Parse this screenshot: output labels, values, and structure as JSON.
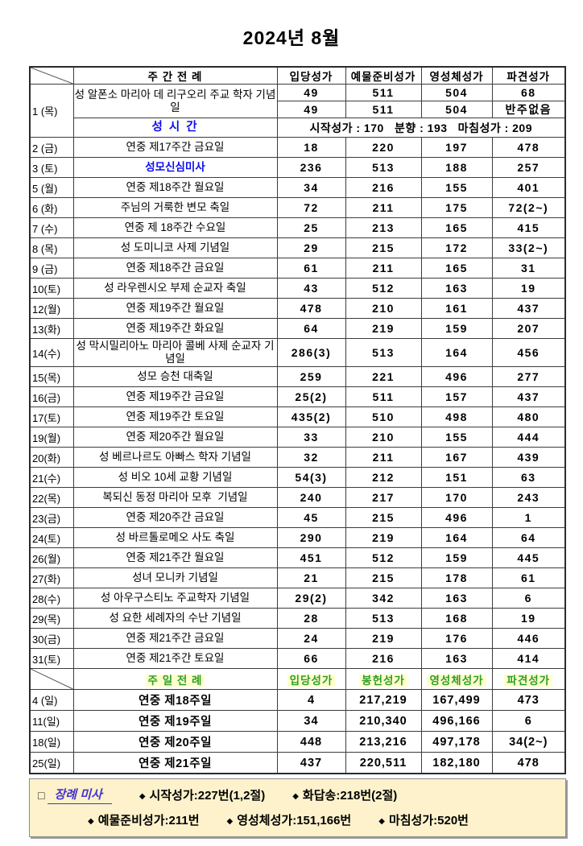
{
  "title": "2024년 8월",
  "colors": {
    "accent_blue": "#0b0bee",
    "accent_green": "#2f9e28",
    "green_highlight": "#ffffcc",
    "funeral_box_bg": "#fdf2cb",
    "funeral_label_color": "#4433cc"
  },
  "weekday_section": {
    "header": {
      "title_col": "주 간 전 례",
      "cols": [
        "입당성가",
        "예물준비성가",
        "영성체성가",
        "파견성가"
      ]
    },
    "day1": {
      "date": "1 (목)",
      "feast": "성 알폰소 마리아 데 리구오리 주교 학자 기념일",
      "row_a": [
        "49",
        "511",
        "504",
        "68"
      ],
      "row_b": [
        "49",
        "511",
        "504",
        "반주없음"
      ],
      "seongsigan_label": "성 시 간",
      "seongsigan_detail": "시작성가 : 170   분향 : 193   마침성가 : 209"
    },
    "rows": [
      {
        "date": "2 (금)",
        "feast": "연중 제17주간 금요일",
        "values": [
          "18",
          "220",
          "197",
          "478"
        ]
      },
      {
        "date": "3 (토)",
        "feast": "성모신심미사",
        "blue": true,
        "values": [
          "236",
          "513",
          "188",
          "257"
        ]
      },
      {
        "date": "5 (월)",
        "feast": "연중 제18주간 월요일",
        "values": [
          "34",
          "216",
          "155",
          "401"
        ]
      },
      {
        "date": "6 (화)",
        "feast": "주님의 거룩한 변모 축일",
        "values": [
          "72",
          "211",
          "175",
          "72(2~)"
        ]
      },
      {
        "date": "7 (수)",
        "feast": "연중 제 18주간 수요일",
        "values": [
          "25",
          "213",
          "165",
          "415"
        ]
      },
      {
        "date": "8 (목)",
        "feast": "성 도미니코 사제 기념일",
        "values": [
          "29",
          "215",
          "172",
          "33(2~)"
        ]
      },
      {
        "date": "9 (금)",
        "feast": "연중 제18주간 금요일",
        "values": [
          "61",
          "211",
          "165",
          "31"
        ]
      },
      {
        "date": "10(토)",
        "feast": "성 라우렌시오 부제 순교자 축일",
        "values": [
          "43",
          "512",
          "163",
          "19"
        ]
      },
      {
        "date": "12(월)",
        "feast": "연중 제19주간 월요일",
        "values": [
          "478",
          "210",
          "161",
          "437"
        ]
      },
      {
        "date": "13(화)",
        "feast": "연중 제19주간 화요일",
        "values": [
          "64",
          "219",
          "159",
          "207"
        ]
      },
      {
        "date": "14(수)",
        "feast": "성 막시밀리아노 마리아 콜베 사제 순교자 기념일",
        "tall": true,
        "values": [
          "286(3)",
          "513",
          "164",
          "456"
        ]
      },
      {
        "date": "15(목)",
        "feast": "성모 승천 대축일",
        "values": [
          "259",
          "221",
          "496",
          "277"
        ]
      },
      {
        "date": "16(금)",
        "feast": "연중 제19주간 금요일",
        "values": [
          "25(2)",
          "511",
          "157",
          "437"
        ]
      },
      {
        "date": "17(토)",
        "feast": "연중 제19주간 토요일",
        "values": [
          "435(2)",
          "510",
          "498",
          "480"
        ]
      },
      {
        "date": "19(월)",
        "feast": "연중 제20주간 월요일",
        "values": [
          "33",
          "210",
          "155",
          "444"
        ]
      },
      {
        "date": "20(화)",
        "feast": "성 베르나르도 아빠스 학자 기념일",
        "values": [
          "32",
          "211",
          "167",
          "439"
        ]
      },
      {
        "date": "21(수)",
        "feast": "성 비오 10세 교황 기념일",
        "values": [
          "54(3)",
          "212",
          "151",
          "63"
        ]
      },
      {
        "date": "22(목)",
        "feast": "복되신 동정 마리아 모후  기념일",
        "values": [
          "240",
          "217",
          "170",
          "243"
        ]
      },
      {
        "date": "23(금)",
        "feast": "연중 제20주간 금요일",
        "values": [
          "45",
          "215",
          "496",
          "1"
        ]
      },
      {
        "date": "24(토)",
        "feast": "성 바르톨로메오 사도 축일",
        "values": [
          "290",
          "219",
          "164",
          "64"
        ]
      },
      {
        "date": "26(월)",
        "feast": "연중 제21주간 월요일",
        "values": [
          "451",
          "512",
          "159",
          "445"
        ]
      },
      {
        "date": "27(화)",
        "feast": "성녀 모니카 기념일",
        "values": [
          "21",
          "215",
          "178",
          "61"
        ]
      },
      {
        "date": "28(수)",
        "feast": "성 아우구스티노 주교학자 기념일",
        "values": [
          "29(2)",
          "342",
          "163",
          "6"
        ]
      },
      {
        "date": "29(목)",
        "feast": "성 요한 세례자의 수난 기념일",
        "values": [
          "28",
          "513",
          "168",
          "19"
        ]
      },
      {
        "date": "30(금)",
        "feast": "연중 제21주간 금요일",
        "values": [
          "24",
          "219",
          "176",
          "446"
        ]
      },
      {
        "date": "31(토)",
        "feast": "연중 제21주간 토요일",
        "values": [
          "66",
          "216",
          "163",
          "414"
        ]
      }
    ]
  },
  "sunday_section": {
    "header": {
      "title_col": "주 일 전 례",
      "cols": [
        "입당성가",
        "봉헌성가",
        "영성체성가",
        "파견성가"
      ]
    },
    "rows": [
      {
        "date": "4 (일)",
        "feast": "연중 제18주일",
        "values": [
          "4",
          "217,219",
          "167,499",
          "473"
        ]
      },
      {
        "date": "11(일)",
        "feast": "연중 제19주일",
        "values": [
          "34",
          "210,340",
          "496,166",
          "6"
        ]
      },
      {
        "date": "18(일)",
        "feast": "연중 제20주일",
        "values": [
          "448",
          "213,216",
          "497,178",
          "34(2~)"
        ]
      },
      {
        "date": "25(일)",
        "feast": "연중 제21주일",
        "values": [
          "437",
          "220,511",
          "182,180",
          "478"
        ]
      }
    ]
  },
  "funeral_section": {
    "checkbox": "□",
    "label": "장례 미사",
    "bullet": "◆",
    "line1_items": [
      "시작성가:227번(1,2절)",
      "화답송:218번(2절)"
    ],
    "line2_items": [
      "예물준비성가:211번",
      "영성체성가:151,166번",
      "마침성가:520번"
    ]
  }
}
